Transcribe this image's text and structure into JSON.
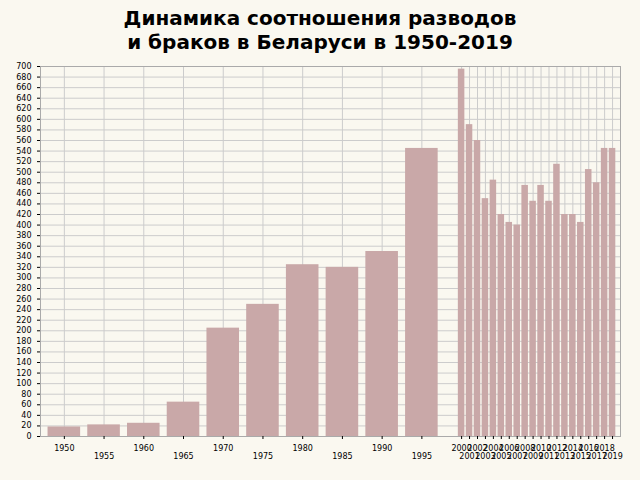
{
  "chart_data": {
    "type": "bar",
    "title": "Динамика соотношения разводов",
    "subtitle": "и браков в Беларуси в 1950-2019",
    "x": [
      1950,
      1955,
      1960,
      1965,
      1970,
      1975,
      1980,
      1985,
      1990,
      1995,
      2000,
      2001,
      2002,
      2003,
      2004,
      2005,
      2006,
      2007,
      2008,
      2009,
      2010,
      2011,
      2012,
      2013,
      2014,
      2015,
      2016,
      2017,
      2018,
      2019
    ],
    "values": [
      18,
      22,
      25,
      65,
      205,
      250,
      325,
      320,
      350,
      545,
      695,
      590,
      560,
      450,
      485,
      420,
      405,
      400,
      475,
      445,
      475,
      445,
      515,
      420,
      420,
      405,
      505,
      480,
      545,
      545
    ],
    "color": "#c9a8a8",
    "xlim": [
      1947,
      2020
    ],
    "xticks": [
      1950,
      1955,
      1960,
      1965,
      1970,
      1975,
      1980,
      1985,
      1990,
      1995,
      2000,
      2001,
      2002,
      2003,
      2004,
      2005,
      2006,
      2007,
      2008,
      2009,
      2010,
      2011,
      2012,
      2013,
      2014,
      2015,
      2016,
      2017,
      2018,
      2019
    ],
    "ylim": [
      0,
      700
    ],
    "yticks": [
      0,
      20,
      40,
      60,
      80,
      100,
      120,
      140,
      160,
      180,
      200,
      220,
      240,
      260,
      280,
      300,
      320,
      340,
      360,
      380,
      400,
      420,
      440,
      460,
      480,
      500,
      520,
      540,
      560,
      580,
      600,
      620,
      640,
      660,
      680,
      700
    ],
    "grid": true
  }
}
